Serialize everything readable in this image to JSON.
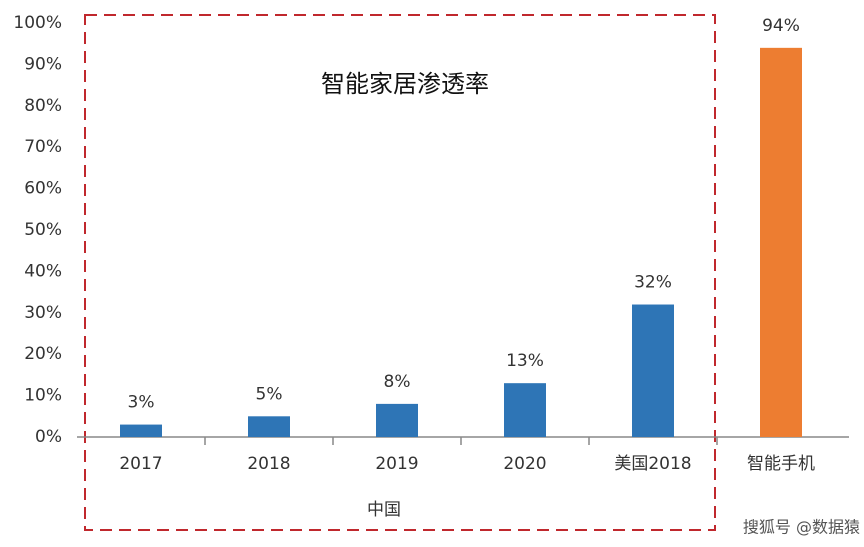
{
  "chart_data": {
    "type": "bar",
    "annotations": [
      "智能家居渗透率",
      "中国"
    ],
    "watermark": "搜狐号 @数据猿",
    "categories": [
      "2017",
      "2018",
      "2019",
      "2020",
      "美国2018",
      "智能手机"
    ],
    "values": [
      3,
      5,
      8,
      13,
      32,
      94
    ],
    "value_labels": [
      "3%",
      "5%",
      "8%",
      "13%",
      "32%",
      "94%"
    ],
    "colors": [
      "#2e75b6",
      "#2e75b6",
      "#2e75b6",
      "#2e75b6",
      "#2e75b6",
      "#ed7d31"
    ],
    "ylim": [
      0,
      100
    ],
    "yticks": [
      {
        "value": 0,
        "label": "0%"
      },
      {
        "value": 10,
        "label": "10%"
      },
      {
        "value": 20,
        "label": "20%"
      },
      {
        "value": 30,
        "label": "30%"
      },
      {
        "value": 40,
        "label": "40%"
      },
      {
        "value": 50,
        "label": "50%"
      },
      {
        "value": 60,
        "label": "60%"
      },
      {
        "value": 70,
        "label": "70%"
      },
      {
        "value": 80,
        "label": "80%"
      },
      {
        "value": 90,
        "label": "90%"
      },
      {
        "value": 100,
        "label": "100%"
      }
    ],
    "grid": false
  }
}
